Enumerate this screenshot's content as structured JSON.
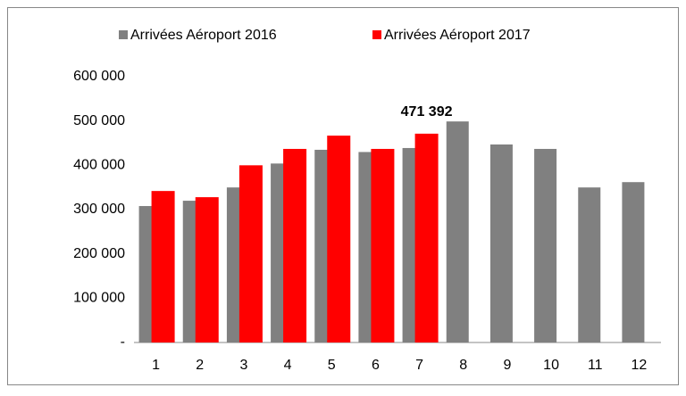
{
  "chart_data": {
    "type": "bar",
    "categories": [
      "1",
      "2",
      "3",
      "4",
      "5",
      "6",
      "7",
      "8",
      "9",
      "10",
      "11",
      "12"
    ],
    "series": [
      {
        "name": "Arrivées Aéroport 2016",
        "color": "#808080",
        "values": [
          308000,
          320000,
          350000,
          404000,
          435000,
          430000,
          439000,
          499000,
          447000,
          437000,
          350000,
          362000
        ]
      },
      {
        "name": "Arrivées Aéroport 2017",
        "color": "#ff0000",
        "values": [
          342000,
          328000,
          400000,
          437000,
          467000,
          437000,
          471392,
          null,
          null,
          null,
          null,
          null
        ],
        "value_labels": [
          null,
          null,
          null,
          null,
          null,
          null,
          "471 392",
          null,
          null,
          null,
          null,
          null
        ]
      }
    ],
    "ylim": [
      0,
      600000
    ],
    "yticks": [
      {
        "value": 0,
        "label": "-"
      },
      {
        "value": 100000,
        "label": "100 000"
      },
      {
        "value": 200000,
        "label": "200 000"
      },
      {
        "value": 300000,
        "label": "300 000"
      },
      {
        "value": 400000,
        "label": "400 000"
      },
      {
        "value": 500000,
        "label": "500 000"
      },
      {
        "value": 600000,
        "label": "600 000"
      }
    ],
    "legend": "top",
    "grid": false
  }
}
